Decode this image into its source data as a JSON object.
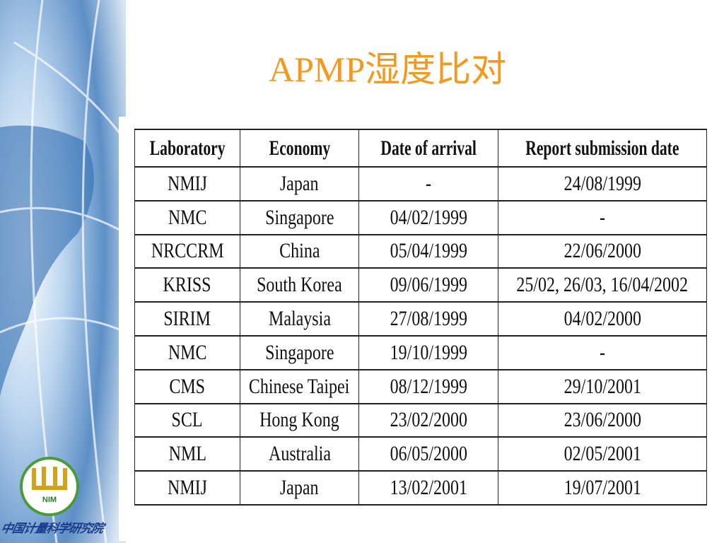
{
  "title": "APMP湿度比对",
  "logo": {
    "mark": "NIM",
    "caption": "中国计量科学研究院"
  },
  "table": {
    "header": [
      "Laboratory",
      "Economy",
      "Date of arrival",
      "Report submission date"
    ],
    "rows": [
      [
        "NMIJ",
        "Japan",
        "-",
        "24/08/1999"
      ],
      [
        "NMC",
        "Singapore",
        "04/02/1999",
        "-"
      ],
      [
        "NRCCRM",
        "China",
        "05/04/1999",
        "22/06/2000"
      ],
      [
        "KRISS",
        "South Korea",
        "09/06/1999",
        "25/02, 26/03, 16/04/2002"
      ],
      [
        "SIRIM",
        "Malaysia",
        "27/08/1999",
        "04/02/2000"
      ],
      [
        "NMC",
        "Singapore",
        "19/10/1999",
        "-"
      ],
      [
        "CMS",
        "Chinese Taipei",
        "08/12/1999",
        "29/10/2001"
      ],
      [
        "SCL",
        "Hong Kong",
        "23/02/2000",
        "23/06/2000"
      ],
      [
        "NML",
        "Australia",
        "06/05/2000",
        "02/05/2001"
      ],
      [
        "NMIJ",
        "Japan",
        "13/02/2001",
        "19/07/2001"
      ]
    ]
  }
}
